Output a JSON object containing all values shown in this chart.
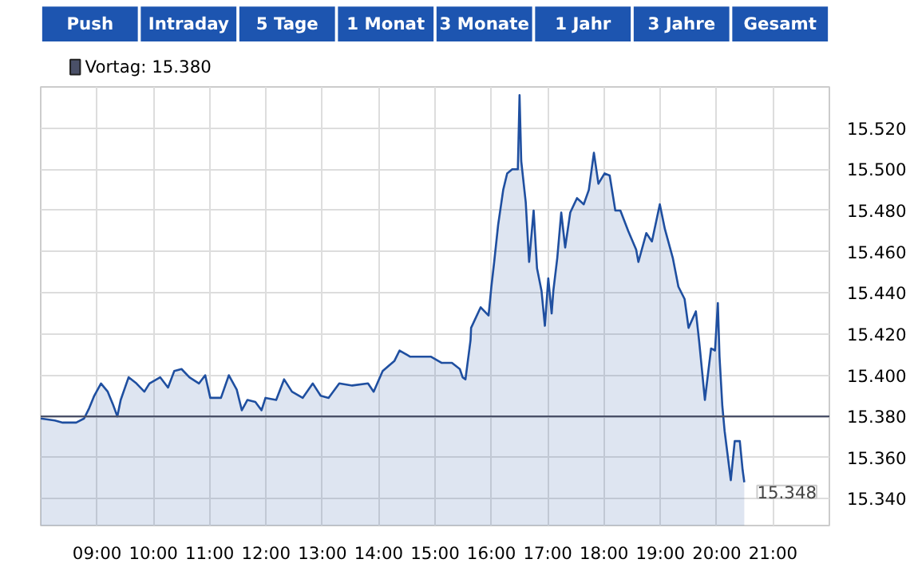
{
  "chart_data": {
    "type": "area",
    "annotations": [
      "Push",
      "Intraday",
      "5 Tage",
      "1 Monat",
      "3 Monate",
      "1 Jahr",
      "3 Jahre",
      "Gesamt",
      {
        "text": "15.348",
        "x": 20.49,
        "y": 15348
      }
    ],
    "series": [
      {
        "color": "#1f4fa0",
        "x": [
          8.0,
          8.25,
          8.39,
          8.63,
          8.77,
          8.86,
          8.95,
          9.07,
          9.19,
          9.28,
          9.36,
          9.42,
          9.56,
          9.7,
          9.84,
          9.93,
          10.12,
          10.26,
          10.37,
          10.5,
          10.64,
          10.81,
          10.92,
          11.01,
          11.2,
          11.34,
          11.48,
          11.57,
          11.67,
          11.81,
          11.92,
          11.99,
          12.18,
          12.32,
          12.46,
          12.65,
          12.83,
          12.97,
          13.11,
          13.3,
          13.53,
          13.81,
          13.91,
          14.07,
          14.28,
          14.37,
          14.56,
          14.93,
          15.12,
          15.3,
          15.44,
          15.49,
          15.54,
          15.63,
          15.64,
          15.81,
          15.95,
          16.0,
          16.05,
          16.12,
          16.21,
          16.28,
          16.37,
          16.47,
          16.5,
          16.53,
          16.61,
          16.67,
          16.75,
          16.81,
          16.89,
          16.95,
          17.01,
          17.07,
          17.1,
          17.17,
          17.24,
          17.31,
          17.4,
          17.52,
          17.64,
          17.73,
          17.82,
          17.9,
          18.01,
          18.1,
          18.2,
          18.29,
          18.43,
          18.57,
          18.61,
          18.75,
          18.85,
          18.99,
          19.08,
          19.22,
          19.32,
          19.43,
          19.5,
          19.63,
          19.69,
          19.79,
          19.9,
          19.97,
          20.02,
          20.05,
          20.1,
          20.14,
          20.25,
          20.32,
          20.41,
          20.46,
          20.49
        ],
        "values": [
          15379,
          15378,
          15377,
          15377,
          15379,
          15384,
          15390,
          15396,
          15392,
          15386,
          15380,
          15388,
          15399,
          15396,
          15392,
          15396,
          15399,
          15394,
          15402,
          15403,
          15399,
          15396,
          15400,
          15389,
          15389,
          15400,
          15393,
          15383,
          15388,
          15387,
          15383,
          15389,
          15388,
          15398,
          15392,
          15389,
          15396,
          15390,
          15389,
          15396,
          15395,
          15396,
          15392,
          15402,
          15407,
          15412,
          15409,
          15409,
          15406,
          15406,
          15403,
          15399,
          15398,
          15417,
          15423,
          15433,
          15429,
          15443,
          15455,
          15473,
          15490,
          15498,
          15500,
          15500,
          15536,
          15504,
          15484,
          15455,
          15480,
          15452,
          15441,
          15424,
          15447,
          15430,
          15441,
          15457,
          15479,
          15462,
          15479,
          15486,
          15483,
          15490,
          15508,
          15493,
          15498,
          15497,
          15480,
          15480,
          15470,
          15461,
          15455,
          15469,
          15465,
          15483,
          15471,
          15457,
          15443,
          15437,
          15423,
          15431,
          15416,
          15388,
          15413,
          15412,
          15435,
          15409,
          15385,
          15373,
          15349,
          15368,
          15368,
          15354,
          15348
        ]
      }
    ],
    "ref_lines": [
      {
        "axis": "y",
        "value": 15380,
        "label": "Vortag: 15.380",
        "color": "#4a5068"
      }
    ],
    "xlim": [
      8,
      22
    ],
    "xticks": [
      {
        "value": 9,
        "label": "09:00"
      },
      {
        "value": 10,
        "label": "10:00"
      },
      {
        "value": 11,
        "label": "11:00"
      },
      {
        "value": 12,
        "label": "12:00"
      },
      {
        "value": 13,
        "label": "13:00"
      },
      {
        "value": 14,
        "label": "14:00"
      },
      {
        "value": 15,
        "label": "15:00"
      },
      {
        "value": 16,
        "label": "16:00"
      },
      {
        "value": 17,
        "label": "17:00"
      },
      {
        "value": 18,
        "label": "18:00"
      },
      {
        "value": 19,
        "label": "19:00"
      },
      {
        "value": 20,
        "label": "20:00"
      },
      {
        "value": 21,
        "label": "21:00"
      }
    ],
    "ylim": [
      15327,
      15540
    ],
    "yticks": [
      {
        "value": 15340,
        "label": "15.340"
      },
      {
        "value": 15360,
        "label": "15.360"
      },
      {
        "value": 15380,
        "label": "15.380"
      },
      {
        "value": 15400,
        "label": "15.400"
      },
      {
        "value": 15420,
        "label": "15.420"
      },
      {
        "value": 15440,
        "label": "15.440"
      },
      {
        "value": 15460,
        "label": "15.460"
      },
      {
        "value": 15480,
        "label": "15.480"
      },
      {
        "value": 15500,
        "label": "15.500"
      },
      {
        "value": 15520,
        "label": "15.520"
      }
    ],
    "grid": true,
    "legend": "top left"
  }
}
